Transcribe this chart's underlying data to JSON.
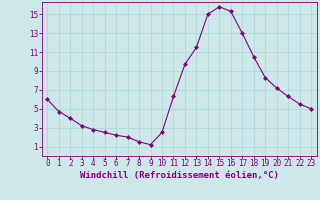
{
  "x": [
    0,
    1,
    2,
    3,
    4,
    5,
    6,
    7,
    8,
    9,
    10,
    11,
    12,
    13,
    14,
    15,
    16,
    17,
    18,
    19,
    20,
    21,
    22,
    23
  ],
  "y": [
    6.0,
    4.7,
    4.0,
    3.2,
    2.8,
    2.5,
    2.2,
    2.0,
    1.5,
    1.2,
    2.5,
    6.3,
    9.7,
    11.5,
    15.0,
    15.8,
    15.3,
    13.0,
    10.5,
    8.3,
    7.2,
    6.3,
    5.5,
    5.0
  ],
  "line_color": "#800080",
  "marker": "D",
  "marker_size": 2.0,
  "bg_color": "#cce8e8",
  "grid_color": "#aad4d4",
  "xlabel": "Windchill (Refroidissement éolien,°C)",
  "xlabel_color": "#800080",
  "tick_color": "#800080",
  "ylim": [
    0,
    16
  ],
  "xlim": [
    -0.5,
    23.5
  ],
  "yticks": [
    1,
    3,
    5,
    7,
    9,
    11,
    13,
    15
  ],
  "xticks": [
    0,
    1,
    2,
    3,
    4,
    5,
    6,
    7,
    8,
    9,
    10,
    11,
    12,
    13,
    14,
    15,
    16,
    17,
    18,
    19,
    20,
    21,
    22,
    23
  ],
  "tick_fontsize": 5.5,
  "xlabel_fontsize": 6.5
}
